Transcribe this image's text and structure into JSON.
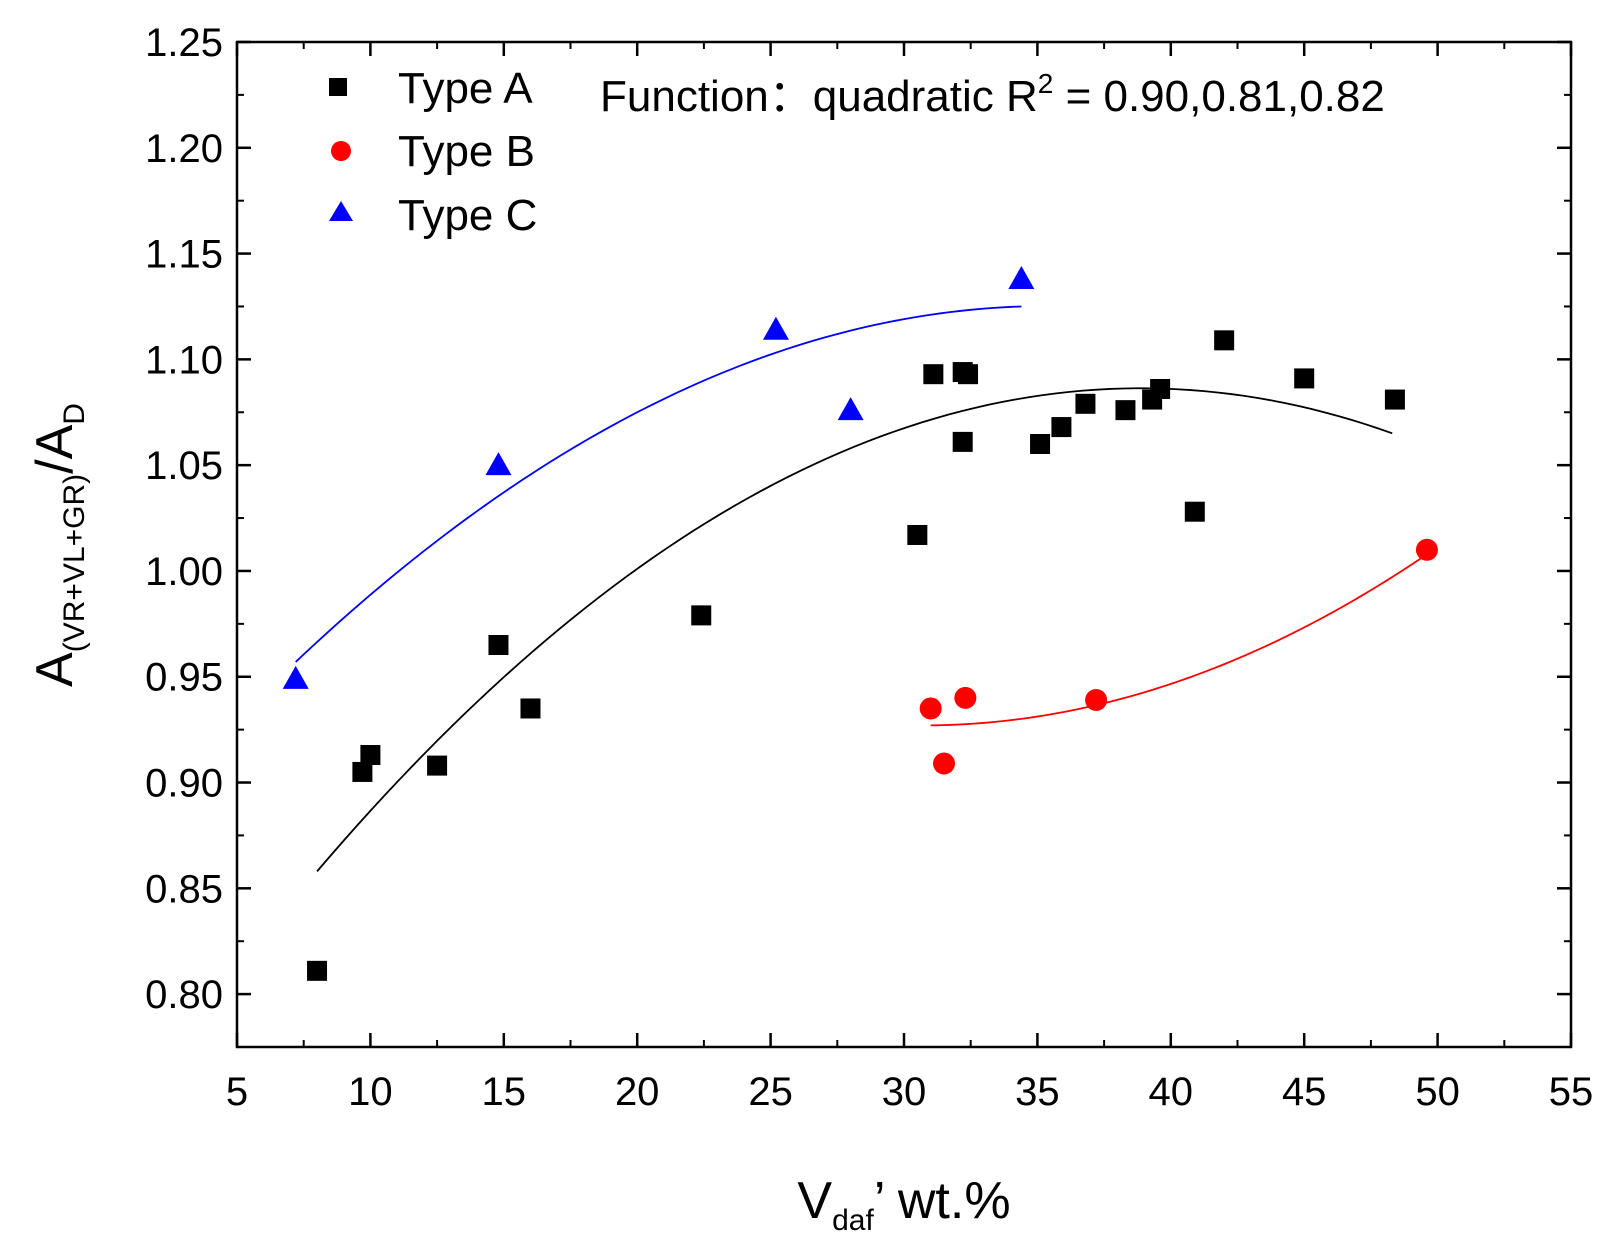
{
  "chart_data": {
    "type": "scatter",
    "title": "",
    "xlabel": {
      "main": "V",
      "sub": "daf",
      "suffix": "’ wt.%"
    },
    "ylabel": {
      "main": "A",
      "sub": "(VR+VL+GR)",
      "suffix": "/A",
      "suffix_sub": "D"
    },
    "xlim": [
      5,
      55
    ],
    "ylim": [
      0.775,
      1.25
    ],
    "x_ticks": [
      5,
      10,
      15,
      20,
      25,
      30,
      35,
      40,
      45,
      50,
      55
    ],
    "x_tick_labels": [
      "5",
      "10",
      "15",
      "20",
      "25",
      "30",
      "35",
      "40",
      "45",
      "50",
      "55"
    ],
    "y_ticks": [
      0.8,
      0.85,
      0.9,
      0.95,
      1.0,
      1.05,
      1.1,
      1.15,
      1.2,
      1.25
    ],
    "y_tick_labels": [
      "0.80",
      "0.85",
      "0.90",
      "0.95",
      "1.00",
      "1.05",
      "1.10",
      "1.15",
      "1.20",
      "1.25"
    ],
    "grid": false,
    "legend_position": "top-left",
    "annotation": {
      "prefix": "Function：quadratic  R",
      "sup": "2",
      "suffix": " = 0.90,0.81,0.82"
    },
    "series": [
      {
        "name": "Type A",
        "marker": "square",
        "color": "#000000",
        "points": [
          {
            "x": 8.0,
            "y": 0.811
          },
          {
            "x": 9.7,
            "y": 0.905
          },
          {
            "x": 10.0,
            "y": 0.913
          },
          {
            "x": 12.5,
            "y": 0.908
          },
          {
            "x": 14.8,
            "y": 0.965
          },
          {
            "x": 16.0,
            "y": 0.935
          },
          {
            "x": 22.4,
            "y": 0.979
          },
          {
            "x": 30.5,
            "y": 1.017
          },
          {
            "x": 31.1,
            "y": 1.093
          },
          {
            "x": 32.2,
            "y": 1.061
          },
          {
            "x": 32.2,
            "y": 1.094
          },
          {
            "x": 32.4,
            "y": 1.093
          },
          {
            "x": 35.1,
            "y": 1.06
          },
          {
            "x": 35.9,
            "y": 1.068
          },
          {
            "x": 36.8,
            "y": 1.079
          },
          {
            "x": 38.3,
            "y": 1.076
          },
          {
            "x": 39.3,
            "y": 1.081
          },
          {
            "x": 39.6,
            "y": 1.086
          },
          {
            "x": 40.9,
            "y": 1.028
          },
          {
            "x": 42.0,
            "y": 1.109
          },
          {
            "x": 45.0,
            "y": 1.091
          },
          {
            "x": 48.4,
            "y": 1.081
          }
        ],
        "fit": {
          "type": "quadratic",
          "x_range": [
            8.0,
            48.3
          ],
          "points": [
            [
              8.0,
              0.858
            ],
            [
              20.0,
              1.001
            ],
            [
              42.0,
              1.084
            ]
          ]
        }
      },
      {
        "name": "Type B",
        "marker": "circle",
        "color": "#ff0000",
        "points": [
          {
            "x": 31.0,
            "y": 0.935
          },
          {
            "x": 31.5,
            "y": 0.909
          },
          {
            "x": 32.3,
            "y": 0.94
          },
          {
            "x": 37.2,
            "y": 0.939
          },
          {
            "x": 49.6,
            "y": 1.01
          }
        ],
        "fit": {
          "type": "quadratic",
          "x_range": [
            31.0,
            49.5
          ],
          "points": [
            [
              31.0,
              0.927
            ],
            [
              37.0,
              0.936
            ],
            [
              49.5,
              1.007
            ]
          ]
        }
      },
      {
        "name": "Type C",
        "marker": "triangle",
        "color": "#0000ff",
        "points": [
          {
            "x": 7.2,
            "y": 0.949
          },
          {
            "x": 14.8,
            "y": 1.05
          },
          {
            "x": 25.2,
            "y": 1.114
          },
          {
            "x": 28.0,
            "y": 1.076
          },
          {
            "x": 34.4,
            "y": 1.138
          }
        ],
        "fit": {
          "type": "quadratic",
          "x_range": [
            7.2,
            34.4
          ],
          "points": [
            [
              7.2,
              0.957
            ],
            [
              20.0,
              1.075
            ],
            [
              34.4,
              1.125
            ]
          ]
        }
      }
    ]
  }
}
